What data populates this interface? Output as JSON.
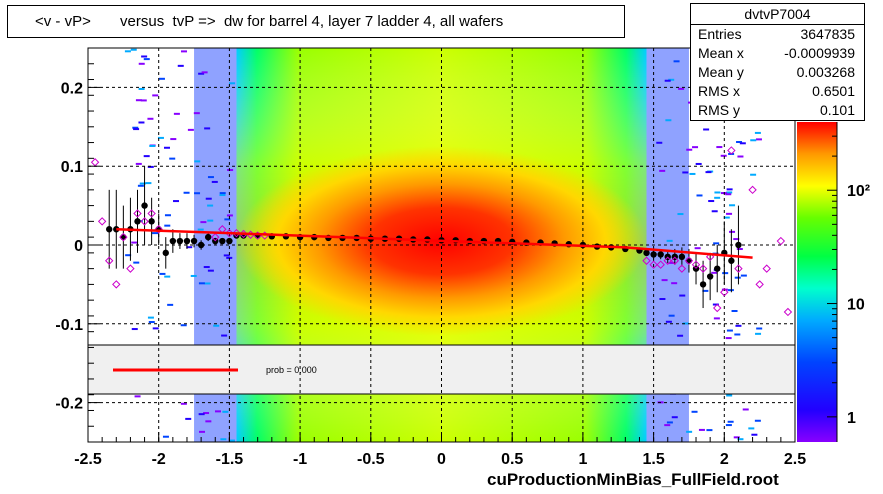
{
  "title": "<v - vP>       versus  tvP =>  dw for barrel 4, layer 7 ladder 4, all wafers",
  "stats": {
    "name": "dvtvP7004",
    "rows": [
      {
        "label": "Entries",
        "value": "3647835"
      },
      {
        "label": "Mean x",
        "value": "-0.0009939"
      },
      {
        "label": "Mean y",
        "value": "0.003268"
      },
      {
        "label": "RMS x",
        "value": "0.6501"
      },
      {
        "label": "RMS y",
        "value": "0.101"
      }
    ]
  },
  "legend": {
    "fit_label": "prob = 0.000",
    "fit_color": "#ff0000"
  },
  "footer": "cuProductionMinBias_FullField.root",
  "colors": {
    "profile_black": "#000000",
    "profile_magenta": "#cc00cc",
    "fit": "#ff0000"
  },
  "chart_data": {
    "type": "heatmap",
    "title": "<v - vP>       versus  tvP =>  dw for barrel 4, layer 7 ladder 4, all wafers",
    "xlabel": "",
    "ylabel": "",
    "xlim": [
      -2.5,
      2.5
    ],
    "ylim": [
      -0.25,
      0.25
    ],
    "x_ticks": [
      {
        "value": -2.5,
        "label": "-2.5"
      },
      {
        "value": -2,
        "label": "-2"
      },
      {
        "value": -1.5,
        "label": "-1.5"
      },
      {
        "value": -1,
        "label": "-1"
      },
      {
        "value": -0.5,
        "label": "-0.5"
      },
      {
        "value": 0,
        "label": "0"
      },
      {
        "value": 0.5,
        "label": "0.5"
      },
      {
        "value": 1,
        "label": "1"
      },
      {
        "value": 1.5,
        "label": "1.5"
      },
      {
        "value": 2,
        "label": "2"
      },
      {
        "value": 2.5,
        "label": "2.5"
      }
    ],
    "y_ticks": [
      {
        "value": 0.2,
        "label": "0.2"
      },
      {
        "value": 0.1,
        "label": "0.1"
      },
      {
        "value": 0,
        "label": "0"
      },
      {
        "value": -0.1,
        "label": "-0.1"
      },
      {
        "value": -0.2,
        "label": "-0.2"
      }
    ],
    "grid": true,
    "colorbar": {
      "scale": "log",
      "ticks": [
        {
          "value": 1,
          "label": "1"
        },
        {
          "value": 10,
          "label": "10"
        },
        {
          "value": 100,
          "label": "10²"
        }
      ]
    },
    "profile_black": {
      "x": [
        -2.35,
        -2.3,
        -2.25,
        -2.2,
        -2.15,
        -2.1,
        -2.05,
        -2.0,
        -1.95,
        -1.9,
        -1.85,
        -1.8,
        -1.75,
        -1.7,
        -1.65,
        -1.6,
        -1.55,
        -1.5,
        -1.45,
        -1.4,
        -1.3,
        -1.2,
        -1.1,
        -1.0,
        -0.9,
        -0.8,
        -0.7,
        -0.6,
        -0.5,
        -0.4,
        -0.3,
        -0.2,
        -0.1,
        0.0,
        0.1,
        0.2,
        0.3,
        0.4,
        0.5,
        0.6,
        0.7,
        0.8,
        0.9,
        1.0,
        1.1,
        1.2,
        1.3,
        1.4,
        1.45,
        1.5,
        1.55,
        1.6,
        1.65,
        1.7,
        1.75,
        1.8,
        1.85,
        1.9,
        1.95,
        2.0,
        2.05,
        2.1
      ],
      "y": [
        0.02,
        0.02,
        0.01,
        0.02,
        0.03,
        0.05,
        0.03,
        0.02,
        -0.01,
        0.005,
        0.005,
        0.005,
        0.005,
        0.0,
        0.01,
        0.005,
        0.005,
        0.005,
        0.012,
        0.012,
        0.012,
        0.011,
        0.011,
        0.01,
        0.01,
        0.009,
        0.009,
        0.009,
        0.008,
        0.008,
        0.008,
        0.007,
        0.007,
        0.006,
        0.006,
        0.005,
        0.005,
        0.005,
        0.004,
        0.003,
        0.003,
        0.002,
        0.001,
        0.0,
        -0.002,
        -0.003,
        -0.005,
        -0.007,
        -0.01,
        -0.012,
        -0.012,
        -0.015,
        -0.015,
        -0.015,
        -0.02,
        -0.03,
        -0.05,
        -0.04,
        -0.03,
        -0.01,
        -0.02,
        0.0
      ],
      "err": [
        0.05,
        0.05,
        0.04,
        0.04,
        0.04,
        0.05,
        0.03,
        0.02,
        0.02,
        0.015,
        0.01,
        0.01,
        0.008,
        0.006,
        0.005,
        0.004,
        0.003,
        0.003,
        0.002,
        0.002,
        0.002,
        0.002,
        0.002,
        0.002,
        0.002,
        0.002,
        0.002,
        0.002,
        0.002,
        0.002,
        0.002,
        0.002,
        0.002,
        0.002,
        0.002,
        0.002,
        0.002,
        0.002,
        0.002,
        0.002,
        0.002,
        0.002,
        0.002,
        0.002,
        0.002,
        0.002,
        0.003,
        0.003,
        0.004,
        0.005,
        0.006,
        0.008,
        0.01,
        0.012,
        0.015,
        0.02,
        0.03,
        0.03,
        0.03,
        0.04,
        0.04,
        0.05
      ]
    },
    "profile_magenta": {
      "x": [
        -2.45,
        -2.4,
        -2.35,
        -2.3,
        -2.25,
        -2.2,
        -2.15,
        -2.1,
        -2.05,
        -2.0,
        -1.6,
        -1.55,
        -1.5,
        -1.45,
        -1.4,
        -1.35,
        -1.3,
        -1.25,
        1.45,
        1.5,
        1.55,
        1.6,
        1.65,
        1.7,
        1.75,
        1.8,
        1.85,
        1.9,
        1.95,
        2.0,
        2.05,
        2.1,
        2.2,
        2.25,
        2.3,
        2.4,
        2.45
      ],
      "y": [
        0.105,
        0.03,
        -0.02,
        -0.05,
        0.01,
        -0.03,
        0.04,
        0.03,
        0.04,
        0.02,
        0.01,
        0.02,
        0.015,
        0.015,
        0.014,
        0.013,
        0.012,
        0.012,
        -0.02,
        -0.025,
        -0.025,
        -0.02,
        -0.02,
        -0.03,
        -0.02,
        -0.025,
        -0.03,
        -0.015,
        -0.08,
        -0.06,
        0.12,
        -0.03,
        0.07,
        -0.05,
        -0.03,
        0.005,
        -0.085
      ],
      "err": [
        0.0,
        0.0,
        0.0,
        0.0,
        0.0,
        0.0,
        0.0,
        0.0,
        0.0,
        0.0,
        0.0,
        0.0,
        0.0,
        0.0,
        0.0,
        0.0,
        0.0,
        0.0,
        0.0,
        0.0,
        0.0,
        0.0,
        0.0,
        0.0,
        0.0,
        0.0,
        0.0,
        0.0,
        0.0,
        0.0,
        0.0,
        0.0,
        0.0,
        0.0,
        0.0,
        0.0,
        0.0
      ]
    },
    "fit_line": {
      "x": [
        -2.3,
        -1.5,
        1.3,
        2.2
      ],
      "y": [
        0.02,
        0.015,
        -0.003,
        -0.016
      ]
    }
  }
}
